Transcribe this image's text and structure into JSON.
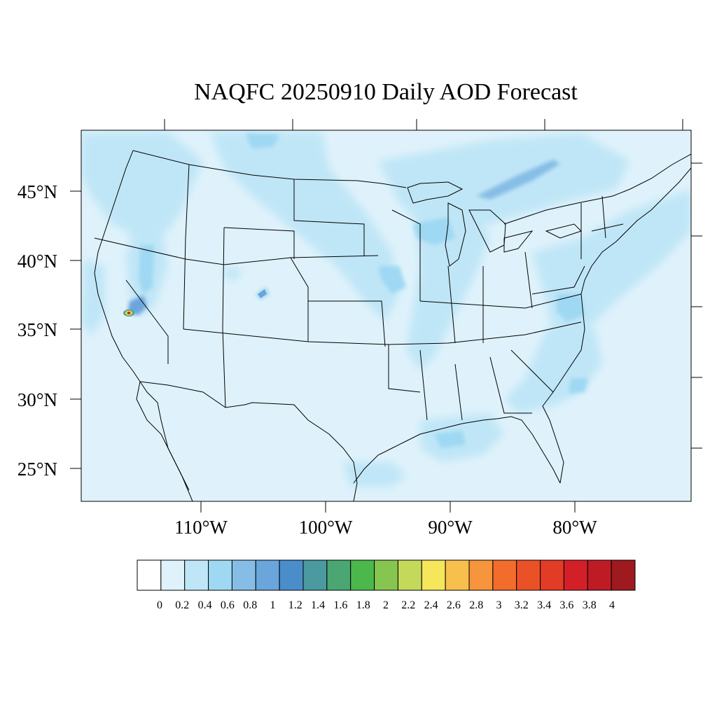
{
  "title": "NAQFC 20250910 Daily AOD Forecast",
  "lat_labels": [
    "45°N",
    "40°N",
    "35°N",
    "30°N",
    "25°N"
  ],
  "lon_labels": [
    "110°W",
    "100°W",
    "90°W",
    "80°W"
  ],
  "colorbar": {
    "labels": [
      "0",
      "0.2",
      "0.4",
      "0.6",
      "0.8",
      "1",
      "1.2",
      "1.4",
      "1.6",
      "1.8",
      "2",
      "2.2",
      "2.4",
      "2.6",
      "2.8",
      "3",
      "3.2",
      "3.4",
      "3.6",
      "3.8",
      "4"
    ],
    "colors": [
      "#ffffff",
      "#dff2fb",
      "#bfe6f7",
      "#9fd8f3",
      "#86bde6",
      "#6aa5dc",
      "#4a8dcb",
      "#4a9aa0",
      "#4aa673",
      "#4cb84b",
      "#86c54f",
      "#c4d85a",
      "#f5e65c",
      "#f7bf4c",
      "#f6953d",
      "#f26c2c",
      "#eb5127",
      "#e23b26",
      "#d32028",
      "#bd1c25",
      "#9e1a1f"
    ]
  },
  "background_color": "#dff2fb"
}
